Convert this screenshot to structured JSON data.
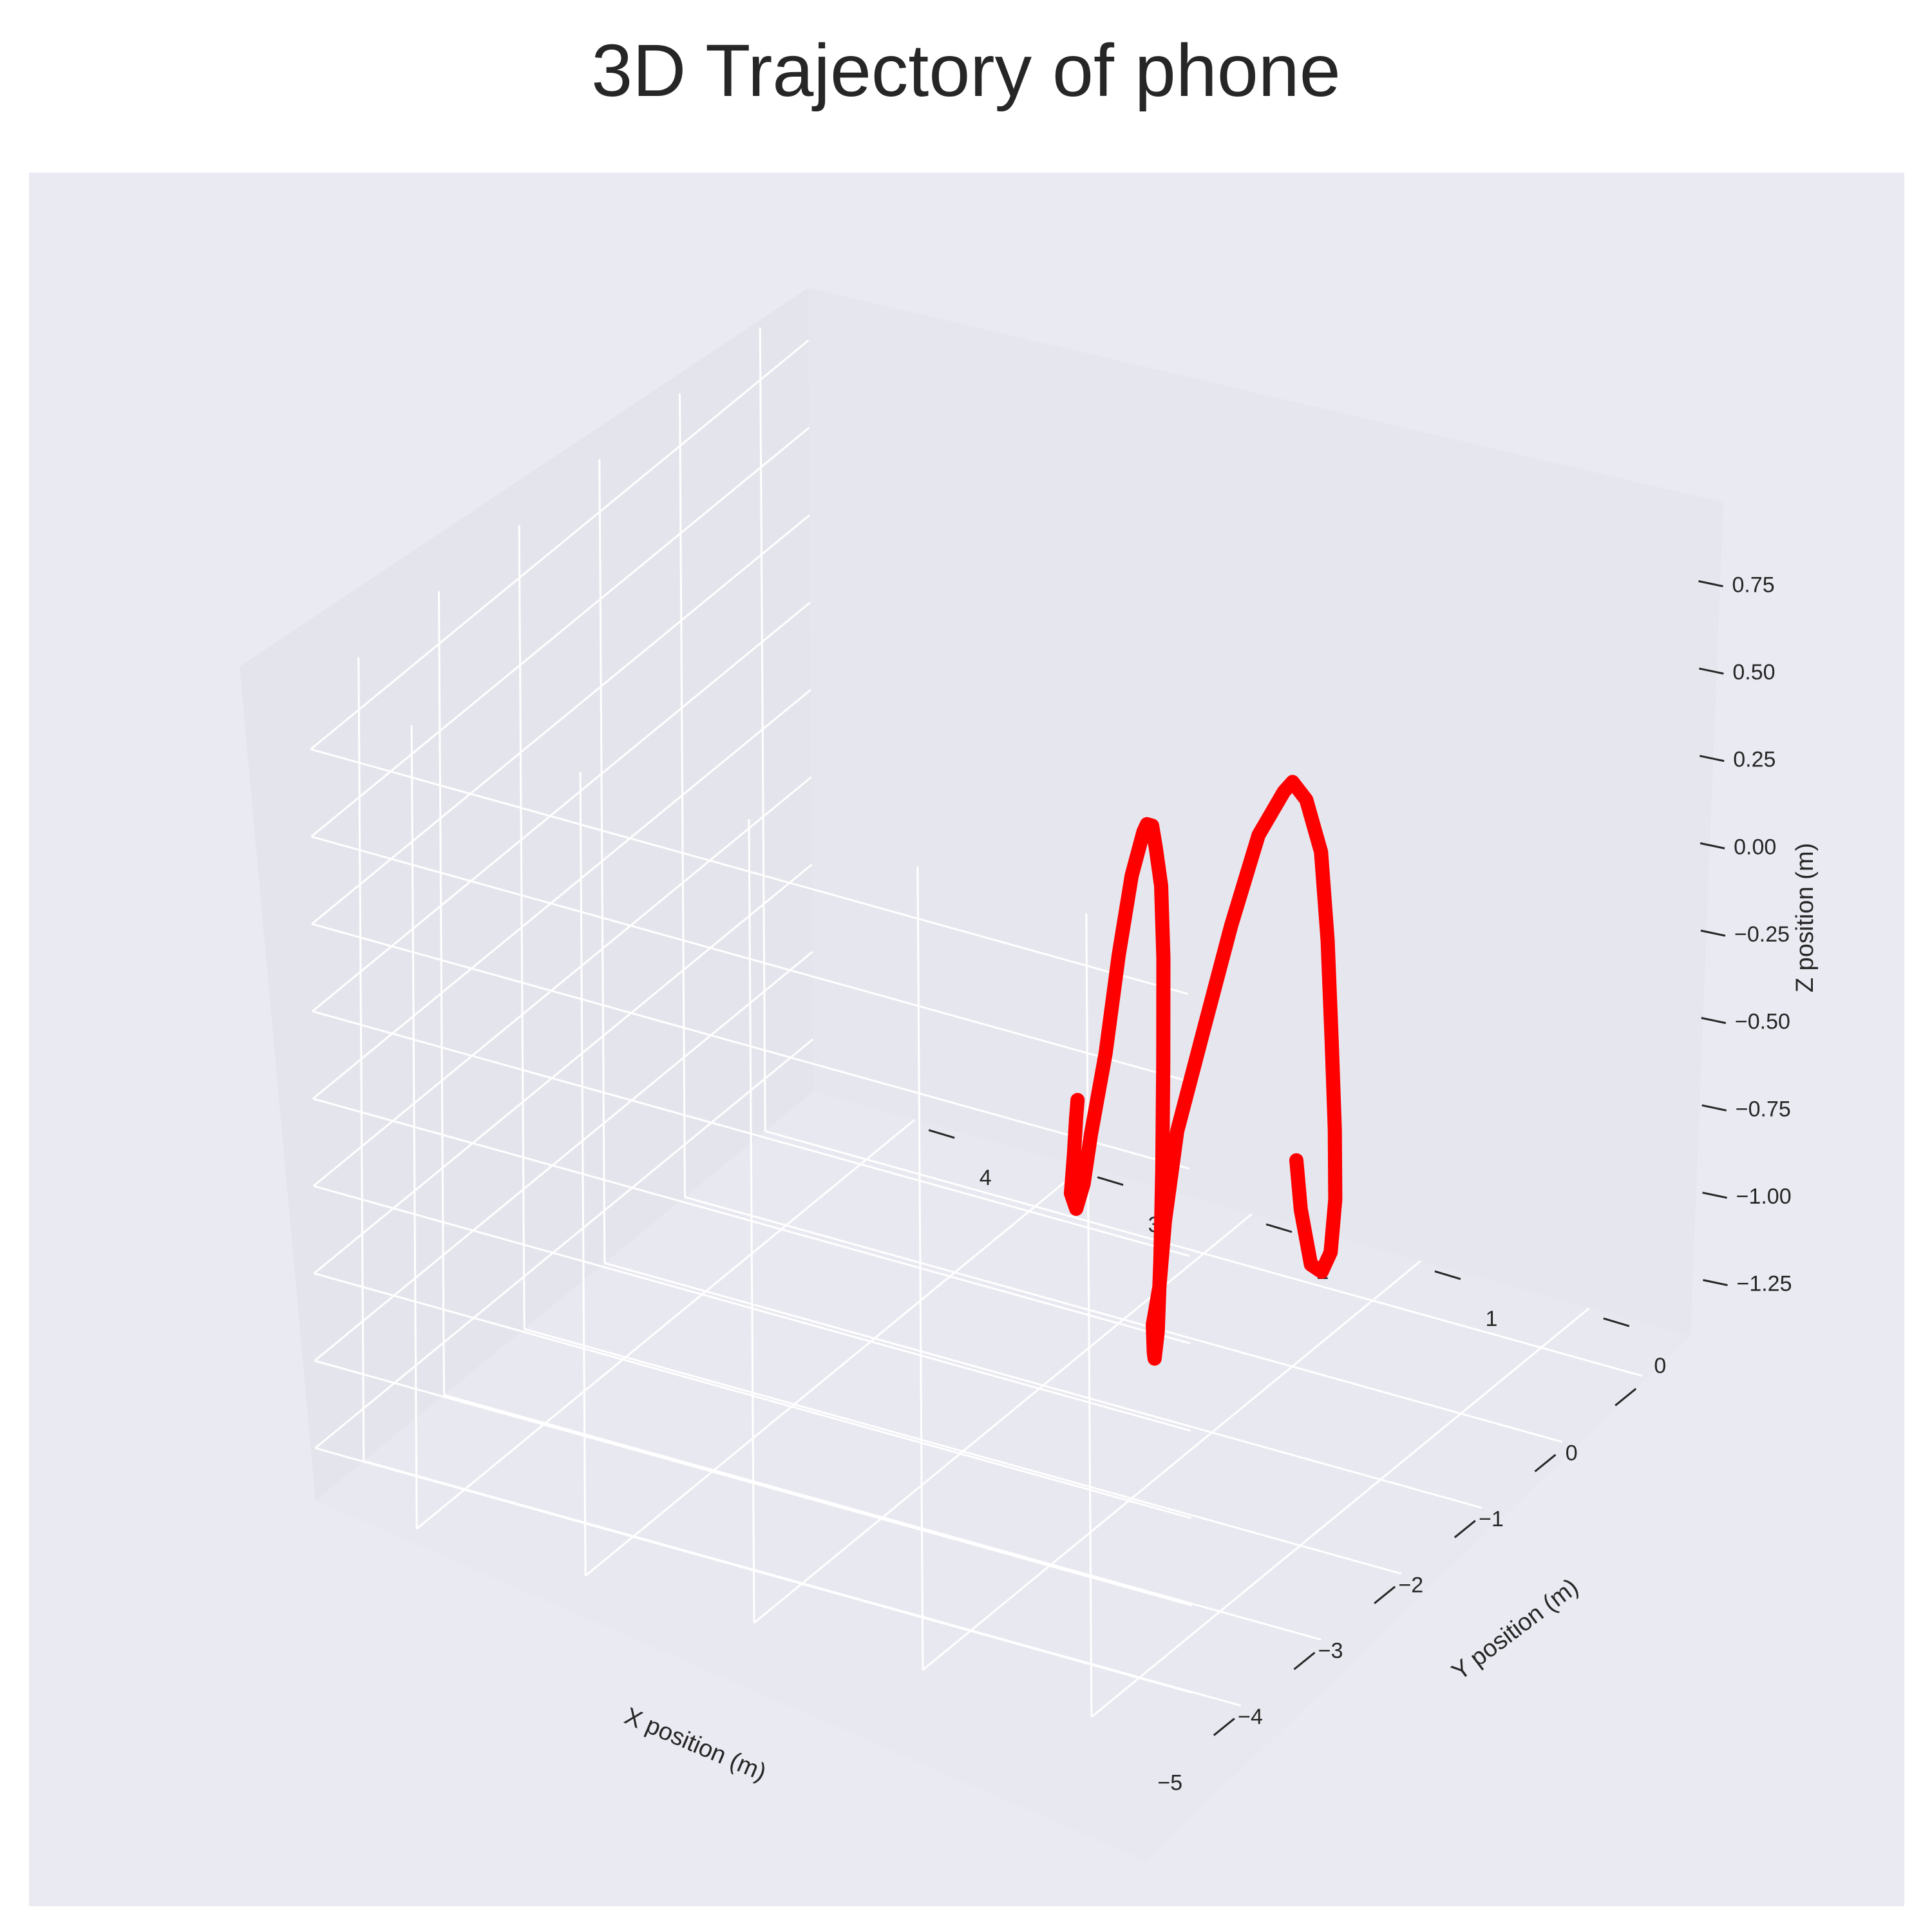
{
  "chart_data": {
    "type": "line",
    "title": "3D Trajectory of phone",
    "xlabel": "X position (m)",
    "ylabel": "Y position (m)",
    "zlabel": "Z position (m)",
    "x_ticks": [
      "−5",
      "−4",
      "−3",
      "−2",
      "−1",
      "0"
    ],
    "y_ticks": [
      "0",
      "1",
      "2",
      "3",
      "4"
    ],
    "z_ticks": [
      "−1.25",
      "−1.00",
      "−0.75",
      "−0.50",
      "−0.25",
      "0.00",
      "0.25",
      "0.50",
      "0.75"
    ],
    "grid": true,
    "colors": {
      "line": "#ff0000",
      "background": "#eaeaf2",
      "grid": "#ffffff"
    },
    "series": [
      {
        "x": [
          -2.6,
          -2.55,
          -2.47,
          -2.4,
          -2.35,
          -2.33,
          -2.33,
          -2.32,
          -2.3,
          -2.27,
          -2.24,
          -2.2,
          -2.1,
          -2.0,
          -1.93,
          -1.85,
          -1.78,
          -1.73,
          -1.7,
          -1.68,
          -1.67,
          -1.66,
          -1.62,
          -1.58,
          -1.55,
          -1.53,
          -1.52,
          -1.5,
          -1.48,
          -1.44,
          -1.4,
          -1.34,
          -1.28,
          -1.24,
          -1.2,
          -1.18,
          -1.17,
          -1.16,
          -1.12,
          -1.08,
          -1.05,
          -1.03
        ],
        "y": [
          0.2,
          0.2,
          0.18,
          0.15,
          0.12,
          0.1,
          0.1,
          0.12,
          0.15,
          0.2,
          0.3,
          0.4,
          0.5,
          0.7,
          0.9,
          1.1,
          1.3,
          1.4,
          1.45,
          1.5,
          1.5,
          1.5,
          1.5,
          1.5,
          1.5,
          1.5,
          1.5,
          1.52,
          1.56,
          1.6,
          1.65,
          1.7,
          1.8,
          1.9,
          2.0,
          2.1,
          2.15,
          2.2,
          2.25,
          2.25,
          2.25,
          2.25
        ],
        "z": [
          -0.4,
          -0.55,
          -0.72,
          -0.75,
          -0.7,
          -0.55,
          -0.35,
          -0.1,
          0.18,
          0.42,
          0.55,
          0.58,
          0.52,
          0.35,
          0.05,
          -0.28,
          -0.62,
          -0.9,
          -1.1,
          -1.22,
          -1.3,
          -1.32,
          -1.25,
          -1.05,
          -0.8,
          -0.5,
          -0.2,
          0.0,
          0.1,
          0.15,
          0.14,
          0.1,
          -0.05,
          -0.3,
          -0.6,
          -0.85,
          -1.0,
          -1.08,
          -1.05,
          -0.95,
          -0.85,
          -0.8
        ]
      }
    ]
  }
}
